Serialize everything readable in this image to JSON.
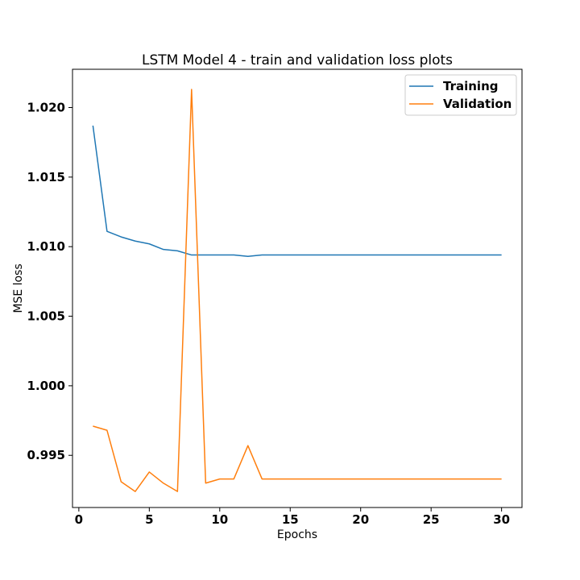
{
  "chart_data": {
    "type": "line",
    "title": "LSTM Model 4 - train and validation loss plots",
    "xlabel": "Epochs",
    "ylabel": "MSE loss",
    "xlim": [
      -0.45,
      31.45
    ],
    "ylim": [
      0.99125,
      1.02275
    ],
    "x_ticks": [
      0,
      5,
      10,
      15,
      20,
      25,
      30
    ],
    "y_ticks": [
      0.995,
      1.0,
      1.005,
      1.01,
      1.015,
      1.02
    ],
    "y_tick_labels": [
      "0.995",
      "1.000",
      "1.005",
      "1.010",
      "1.015",
      "1.020"
    ],
    "x": [
      1,
      2,
      3,
      4,
      5,
      6,
      7,
      8,
      9,
      10,
      11,
      12,
      13,
      14,
      15,
      16,
      17,
      18,
      19,
      20,
      21,
      22,
      23,
      24,
      25,
      26,
      27,
      28,
      29,
      30
    ],
    "series": [
      {
        "name": "Training",
        "color": "#1f77b4",
        "values": [
          1.0187,
          1.0111,
          1.0107,
          1.0104,
          1.0102,
          1.0098,
          1.0097,
          1.0094,
          1.0094,
          1.0094,
          1.0094,
          1.0093,
          1.0094,
          1.0094,
          1.0094,
          1.0094,
          1.0094,
          1.0094,
          1.0094,
          1.0094,
          1.0094,
          1.0094,
          1.0094,
          1.0094,
          1.0094,
          1.0094,
          1.0094,
          1.0094,
          1.0094,
          1.0094
        ]
      },
      {
        "name": "Validation",
        "color": "#ff7f0e",
        "values": [
          0.9971,
          0.9968,
          0.9931,
          0.9924,
          0.9938,
          0.993,
          0.9924,
          1.0213,
          0.993,
          0.9933,
          0.9933,
          0.9957,
          0.9933,
          0.9933,
          0.9933,
          0.9933,
          0.9933,
          0.9933,
          0.9933,
          0.9933,
          0.9933,
          0.9933,
          0.9933,
          0.9933,
          0.9933,
          0.9933,
          0.9933,
          0.9933,
          0.9933,
          0.9933
        ]
      }
    ],
    "legend_position": "upper right",
    "grid": false
  }
}
